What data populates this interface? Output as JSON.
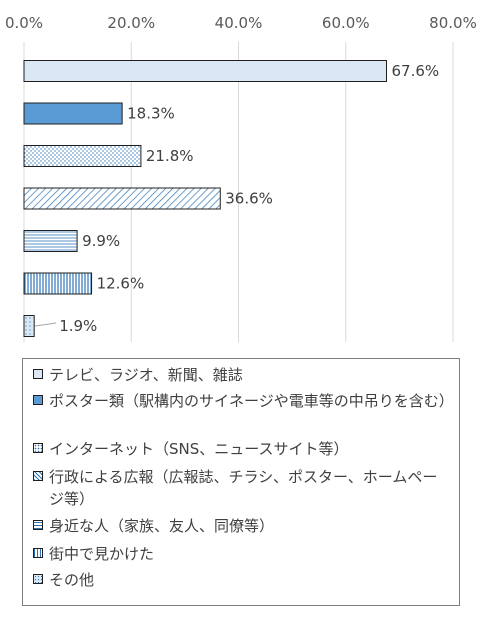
{
  "chart_data": {
    "type": "bar",
    "orientation": "horizontal",
    "xlim": [
      0,
      80
    ],
    "x_ticks": [
      "0.0%",
      "20.0%",
      "40.0%",
      "60.0%",
      "80.0%"
    ],
    "grid": "vertical",
    "legend_position": "bottom",
    "categories": [
      "テレビ、ラジオ、新聞、雑誌",
      "ポスター類（駅構内のサイネージや電車等の中吊りを含む）",
      "インターネット（SNS、ニュースサイト等）",
      "行政による広報（広報誌、チラシ、ポスター、ホームページ等）",
      "身近な人（家族、友人、同僚等）",
      "街中で見かけた",
      "その他"
    ],
    "values": [
      67.6,
      18.3,
      21.8,
      36.6,
      9.9,
      12.6,
      1.9
    ],
    "value_labels": [
      "67.6%",
      "18.3%",
      "21.8%",
      "36.6%",
      "9.9%",
      "12.6%",
      "1.9%"
    ],
    "fills": [
      "solid-light",
      "solid-blue",
      "dots",
      "diagonal",
      "horizontal",
      "vertical",
      "light-dots"
    ],
    "colors": {
      "light": "#dae8f5",
      "blue": "#5b9bd5",
      "pattern": "#2e75b6",
      "edge": "#1f1f1f",
      "grid": "#d9d9d9"
    }
  }
}
